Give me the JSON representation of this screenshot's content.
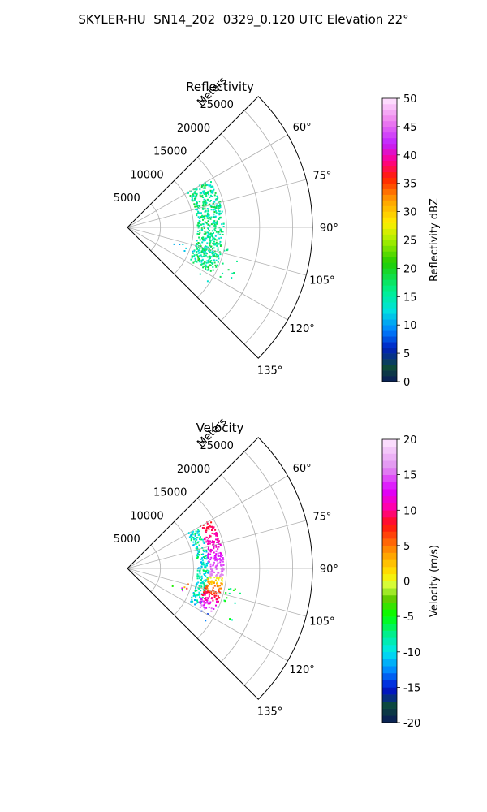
{
  "figure": {
    "suptitle": "SKYLER-HU  SN14_202  0329_0.120 UTC Elevation 22°"
  },
  "chart_data": [
    {
      "type": "polar-sector",
      "title": "Reflectivity",
      "radial_label": "Meters",
      "theta_range_deg": [
        45,
        135
      ],
      "theta_ticks": [
        "60°",
        "75°",
        "90°",
        "105°",
        "120°",
        "135°"
      ],
      "theta_tick_values": [
        60,
        75,
        90,
        105,
        120,
        135
      ],
      "r_range": [
        0,
        28000
      ],
      "r_ticks": [
        "5000",
        "10000",
        "15000",
        "20000",
        "25000"
      ],
      "r_tick_values": [
        5000,
        10000,
        15000,
        20000,
        25000
      ],
      "grid": true,
      "colorbar": {
        "label": "Reflectivity dBZ",
        "range": [
          0,
          50
        ],
        "ticks": [
          "0",
          "5",
          "10",
          "15",
          "20",
          "25",
          "30",
          "35",
          "40",
          "45",
          "50"
        ],
        "tick_values": [
          0,
          5,
          10,
          15,
          20,
          25,
          30,
          35,
          40,
          45,
          50
        ],
        "colormap": "pyart-HomeyerRainbow-like",
        "levels": 50
      },
      "echo_regions": [
        {
          "theta": [
            59,
            118
          ],
          "r": [
            10500,
            14500
          ],
          "value": [
            12,
            20
          ],
          "density": "dense"
        },
        {
          "theta": [
            100,
            118
          ],
          "r": [
            14500,
            17500
          ],
          "value": [
            14,
            19
          ],
          "density": "sparse"
        },
        {
          "theta": [
            104,
            112
          ],
          "r": [
            7000,
            10500
          ],
          "value": [
            10,
            13
          ],
          "density": "sparse"
        },
        {
          "theta": [
            119,
            124
          ],
          "r": [
            12500,
            15000
          ],
          "value": [
            13,
            16
          ],
          "density": "sparse"
        }
      ]
    },
    {
      "type": "polar-sector",
      "title": "Velocity",
      "radial_label": "Meters",
      "theta_range_deg": [
        45,
        135
      ],
      "theta_ticks": [
        "60°",
        "75°",
        "90°",
        "105°",
        "120°",
        "135°"
      ],
      "theta_tick_values": [
        60,
        75,
        90,
        105,
        120,
        135
      ],
      "r_range": [
        0,
        28000
      ],
      "r_ticks": [
        "5000",
        "10000",
        "15000",
        "20000",
        "25000"
      ],
      "r_tick_values": [
        5000,
        10000,
        15000,
        20000,
        25000
      ],
      "grid": true,
      "colorbar": {
        "label": "Velocity (m/s)",
        "range": [
          -20,
          20
        ],
        "ticks": [
          "-20",
          "-15",
          "-10",
          "-5",
          "0",
          "5",
          "10",
          "15",
          "20"
        ],
        "tick_values": [
          -20,
          -15,
          -10,
          -5,
          0,
          5,
          10,
          15,
          20
        ],
        "colormap": "pyart-Carbone42-like",
        "levels": 40
      },
      "echo_regions": [
        {
          "theta": [
            59,
            118
          ],
          "r": [
            10500,
            12200
          ],
          "value": [
            -12,
            -6
          ],
          "density": "dense"
        },
        {
          "theta": [
            59,
            95
          ],
          "r": [
            12200,
            14500
          ],
          "value": [
            8,
            16
          ],
          "density": "dense"
        },
        {
          "theta": [
            95,
            118
          ],
          "r": [
            11800,
            14500
          ],
          "value": [
            0,
            16
          ],
          "density": "dense"
        },
        {
          "theta": [
            100,
            118
          ],
          "r": [
            14500,
            17500
          ],
          "value": [
            -10,
            -4
          ],
          "density": "sparse"
        },
        {
          "theta": [
            104,
            112
          ],
          "r": [
            7000,
            10500
          ],
          "value": [
            -13,
            14
          ],
          "density": "sparse"
        },
        {
          "theta": [
            119,
            124
          ],
          "r": [
            12500,
            15000
          ],
          "value": [
            -16,
            -11
          ],
          "density": "sparse"
        }
      ]
    }
  ]
}
